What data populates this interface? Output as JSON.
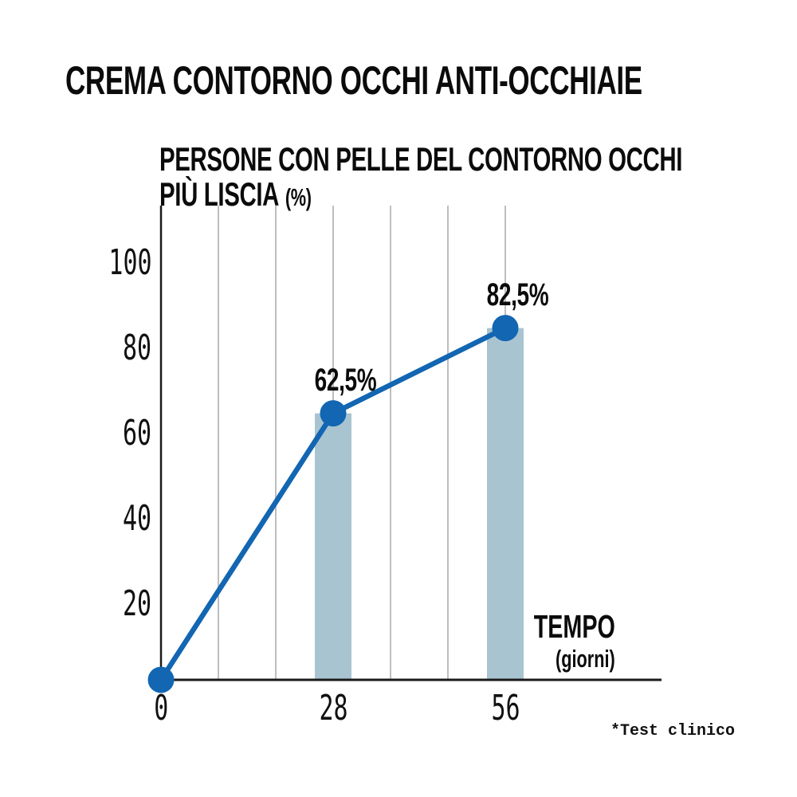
{
  "title": "CREMA CONTORNO OCCHI ANTI-OCCHIAIE",
  "chart": {
    "title_line1": "PERSONE CON PELLE DEL CONTORNO OCCHI",
    "title_line2": "PIÙ LISCIA",
    "title_unit": "(%)",
    "x_axis_label": "TEMPO",
    "x_axis_sublabel": "(giorni)",
    "footnote": "*Test clinico"
  },
  "chart_data": {
    "type": "line",
    "title": "PERSONE CON PELLE DEL CONTORNO OCCHI PIÙ LISCIA (%)",
    "xlabel": "TEMPO (giorni)",
    "ylabel": "PERSONE CON PELLE DEL CONTORNO OCCHI PIÙ LISCIA (%)",
    "x": [
      0,
      28,
      56
    ],
    "values": [
      0,
      62.5,
      82.5
    ],
    "point_labels": [
      "",
      "62,5%",
      "82,5%"
    ],
    "bars_at_x": [
      28,
      56
    ],
    "bar_values": [
      62.5,
      82.5
    ],
    "yticks": [
      20,
      40,
      60,
      80,
      100
    ],
    "xticks": [
      0,
      28,
      56
    ],
    "xlim": [
      0,
      56
    ],
    "ylim": [
      0,
      112
    ],
    "grid": "vertical",
    "legend": "none",
    "annotations": [
      "*Test clinico"
    ],
    "colors": {
      "line": "#1266b2",
      "dot": "#1266b2",
      "bar": "#a9c4d1",
      "grid": "#b7b7b7",
      "axis": "#1a1a1a",
      "text": "#0d0d0d"
    }
  }
}
